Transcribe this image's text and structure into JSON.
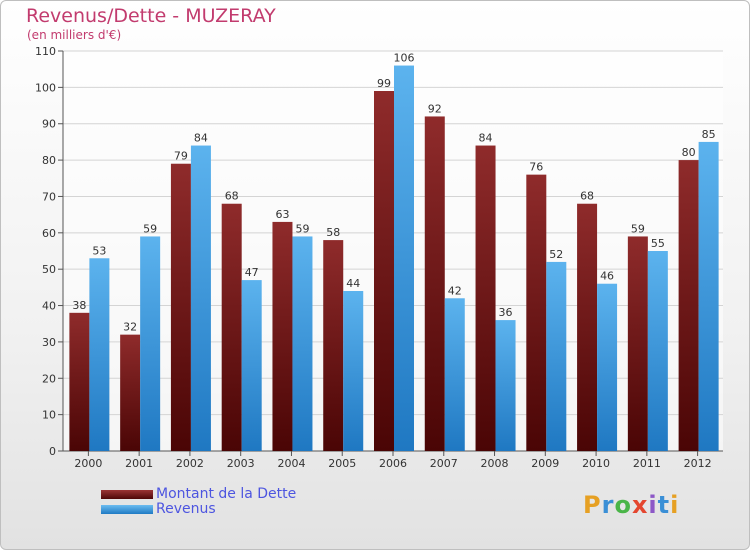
{
  "chart_data": {
    "type": "bar",
    "title": "Revenus/Dette - MUZERAY",
    "subtitle": "(en milliers d'€)",
    "categories": [
      "2000",
      "2001",
      "2002",
      "2003",
      "2004",
      "2005",
      "2006",
      "2007",
      "2008",
      "2009",
      "2010",
      "2011",
      "2012"
    ],
    "series": [
      {
        "name": "Montant de la Dette",
        "color": "#7a1a1a",
        "values": [
          38,
          32,
          79,
          68,
          63,
          58,
          99,
          92,
          84,
          76,
          68,
          59,
          80
        ]
      },
      {
        "name": "Revenus",
        "color": "#3d9be0",
        "values": [
          53,
          59,
          84,
          47,
          59,
          44,
          106,
          42,
          36,
          52,
          46,
          55,
          85
        ]
      }
    ],
    "ylim": [
      0,
      110
    ],
    "yticks": [
      0,
      10,
      20,
      30,
      40,
      50,
      60,
      70,
      80,
      90,
      100,
      110
    ],
    "grid": true,
    "legend_position": "bottom-left"
  },
  "branding": {
    "logo_letters": [
      "P",
      "r",
      "o",
      "x",
      "i",
      "t",
      "i"
    ]
  }
}
